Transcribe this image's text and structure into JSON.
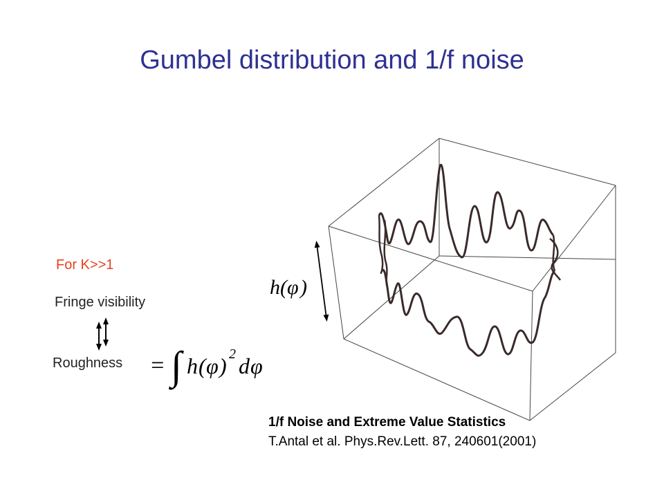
{
  "slide": {
    "title": "Gumbel distribution and 1/f noise",
    "condition": "For K>>1",
    "fringe_label": "Fringe visibility",
    "roughness_label": "Roughness",
    "formula": {
      "equals": "=",
      "integral": "∫",
      "h": "h",
      "open": "(",
      "phi": "φ",
      "close": ")",
      "exponent": "2",
      "d": "d",
      "phi2": "φ"
    },
    "axis_label": {
      "h": "h",
      "open": "(",
      "phi": "φ",
      "close": ")"
    },
    "reference": {
      "title": "1/f Noise and Extreme Value Statistics",
      "citation": "T.Antal et al. Phys.Rev.Lett. 87, 240601(2001)"
    },
    "colors": {
      "title": "#2e3192",
      "accent": "#e8401c",
      "text": "#222222"
    }
  }
}
